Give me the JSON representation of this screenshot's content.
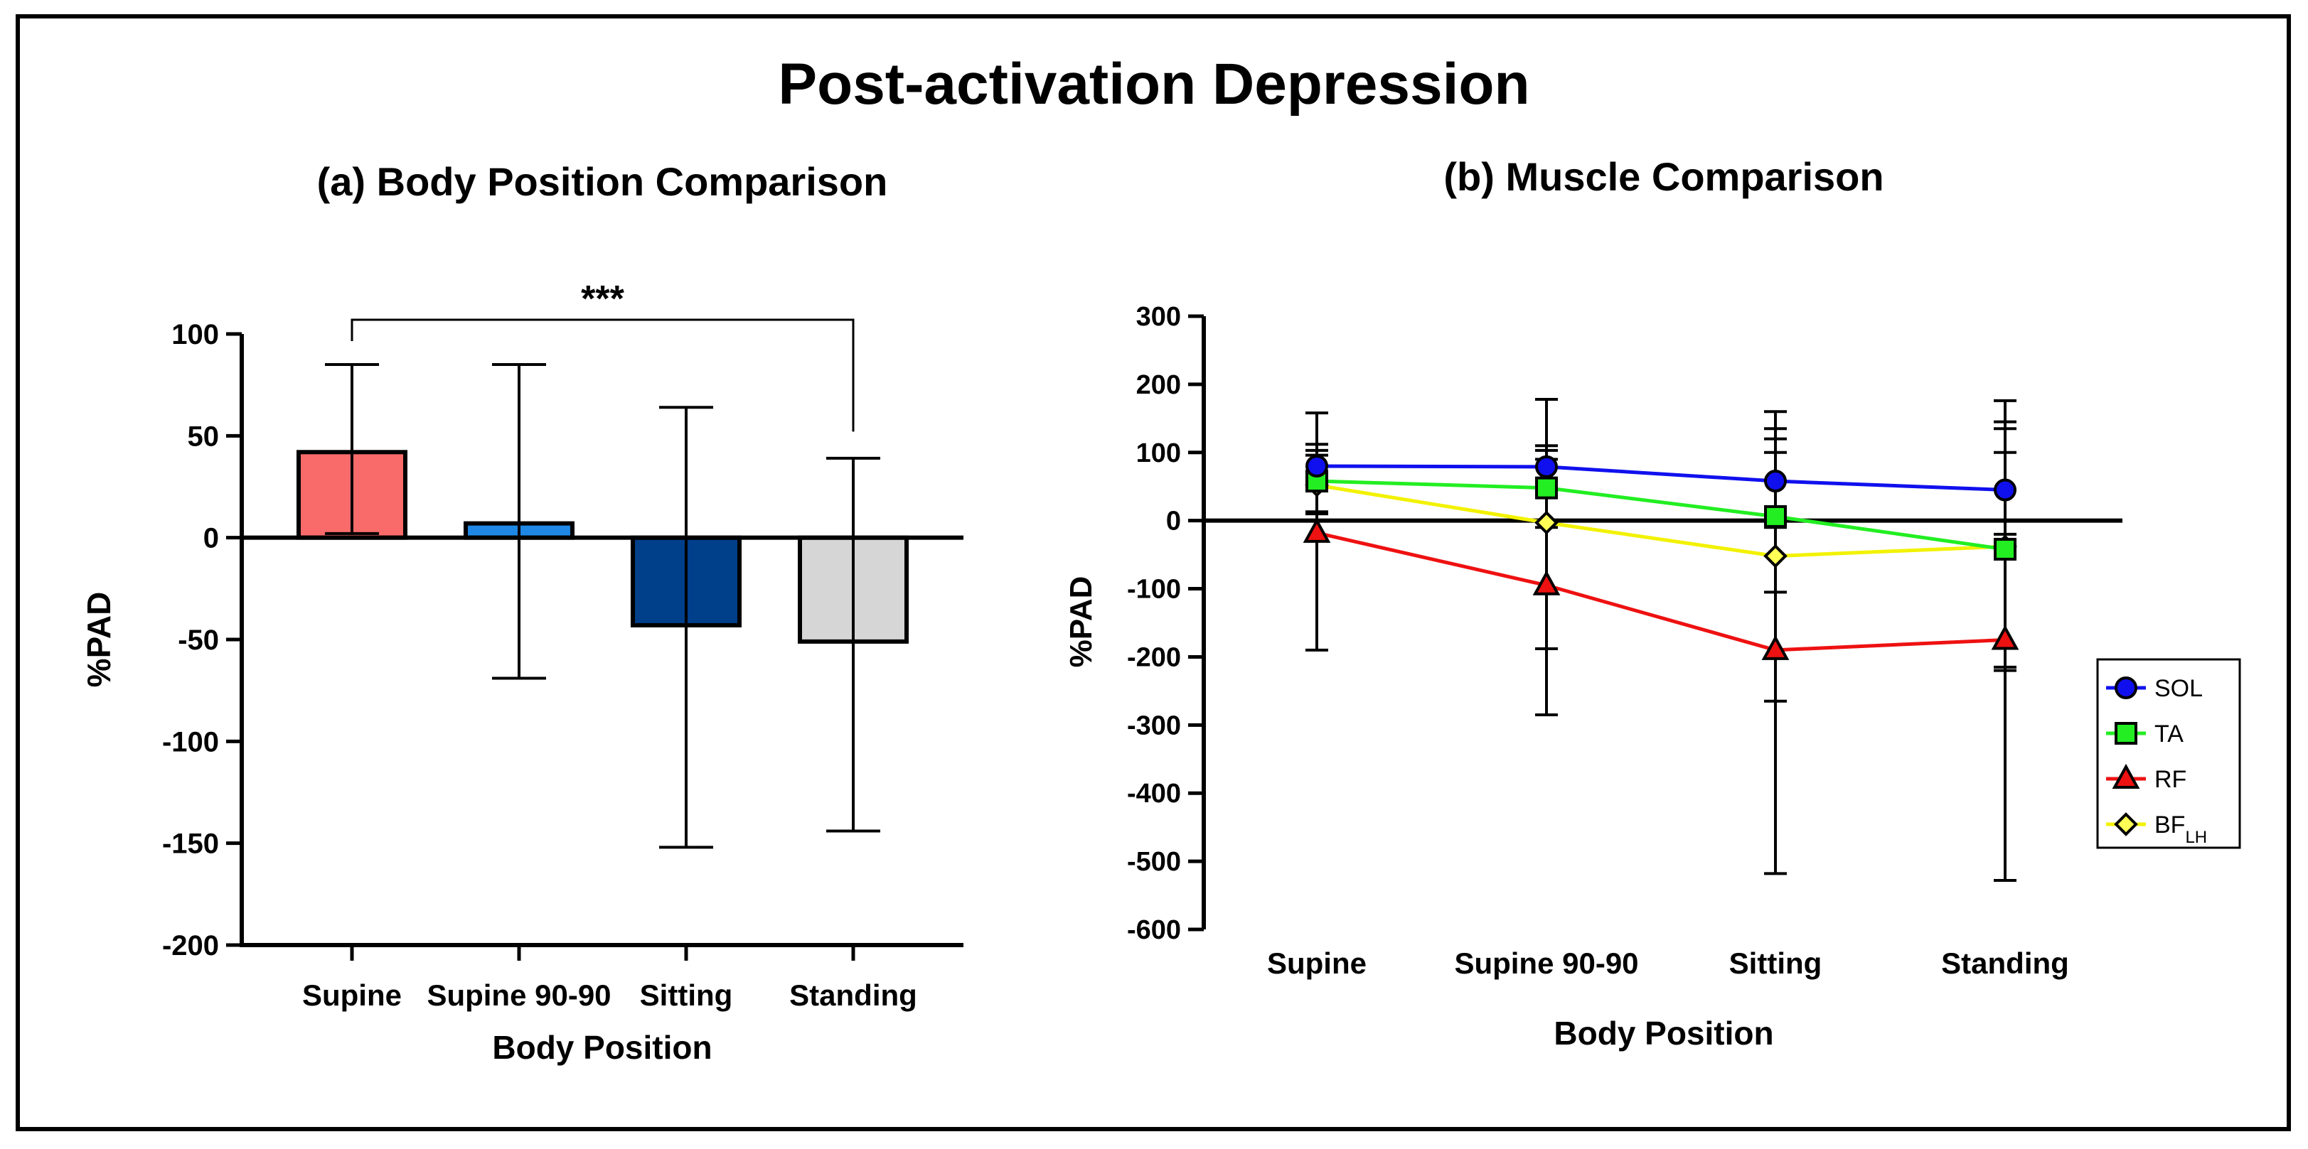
{
  "title": "Post-activation Depression",
  "chart_data": [
    {
      "type": "bar",
      "title": "(a) Body Position Comparison",
      "xlabel": "Body Position",
      "ylabel": "%PAD",
      "ylim": [
        -200,
        100
      ],
      "yticks": [
        100,
        50,
        0,
        -50,
        -100,
        -150,
        -200
      ],
      "categories": [
        "Supine",
        "Supine 90-90",
        "Sitting",
        "Standing"
      ],
      "values": [
        42,
        7,
        -43,
        -51
      ],
      "err_upper": [
        85,
        85,
        64,
        39
      ],
      "err_lower": [
        2,
        -69,
        -152,
        -144
      ],
      "colors": [
        "#f96b6b",
        "#1f88e5",
        "#003f8a",
        "#d6d6d6"
      ],
      "significance": {
        "label": "***",
        "from": "Supine",
        "to": "Standing"
      }
    },
    {
      "type": "line",
      "title": "(b) Muscle Comparison",
      "xlabel": "Body Position",
      "ylabel": "%PAD",
      "ylim": [
        -600,
        300
      ],
      "yticks": [
        300,
        200,
        100,
        0,
        -100,
        -200,
        -300,
        -400,
        -500,
        -600
      ],
      "categories": [
        "Supine",
        "Supine 90-90",
        "Sitting",
        "Standing"
      ],
      "legend_position": "right",
      "series": [
        {
          "name": "SOL",
          "sub": "",
          "marker": "circle",
          "color": "#1010ee",
          "fill": "#1010ee",
          "values": [
            80,
            79,
            58,
            45
          ],
          "err_upper": [
            112,
            110,
            135,
            145
          ],
          "err_lower": [
            48,
            48,
            -10,
            -20
          ]
        },
        {
          "name": "TA",
          "sub": "",
          "marker": "square",
          "color": "#22ee22",
          "fill": "#22ee22",
          "values": [
            58,
            48,
            6,
            -42
          ],
          "err_upper": [
            103,
            103,
            120,
            135
          ],
          "err_lower": [
            13,
            -10,
            -105,
            -215
          ]
        },
        {
          "name": "RF",
          "sub": "",
          "marker": "triangle",
          "color": "#ee1111",
          "fill": "#ee1111",
          "values": [
            -18,
            -95,
            -190,
            -175
          ],
          "err_upper": [
            158,
            178,
            160,
            176
          ],
          "err_lower": [
            -190,
            -285,
            -518,
            -528
          ]
        },
        {
          "name": "BF",
          "sub": "LH",
          "marker": "diamond",
          "color": "#f2f200",
          "fill": "#ffff55",
          "values": [
            52,
            -3,
            -52,
            -38
          ],
          "err_upper": [
            96,
            90,
            100,
            100
          ],
          "err_lower": [
            10,
            -188,
            -265,
            -220
          ]
        }
      ]
    }
  ]
}
